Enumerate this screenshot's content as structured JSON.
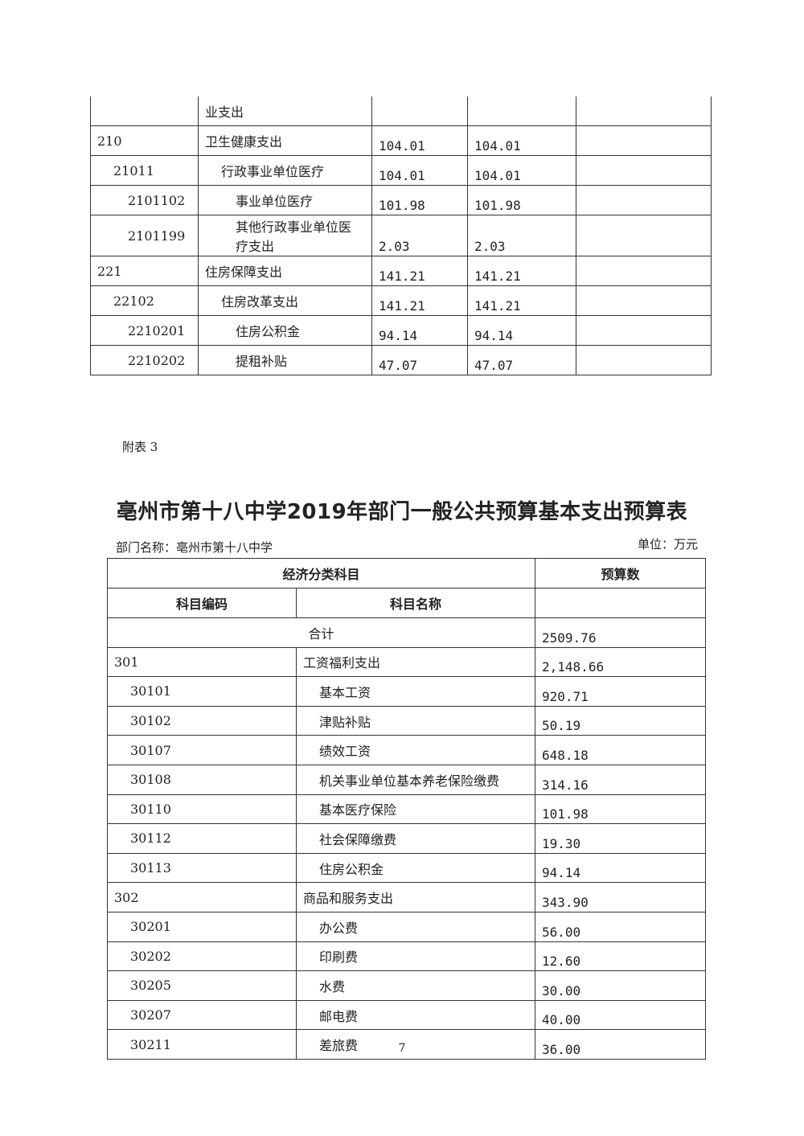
{
  "top_table": {
    "rows": [
      {
        "code": "",
        "name": "业支出",
        "level": 0,
        "v1": "",
        "v2": "",
        "v3": ""
      },
      {
        "code": "210",
        "name": "卫生健康支出",
        "level": 0,
        "v1": "104.01",
        "v2": "104.01",
        "v3": ""
      },
      {
        "code": "21011",
        "name": "行政事业单位医疗",
        "level": 1,
        "v1": "104.01",
        "v2": "104.01",
        "v3": ""
      },
      {
        "code": "2101102",
        "name": "事业单位医疗",
        "level": 2,
        "v1": "101.98",
        "v2": "101.98",
        "v3": ""
      },
      {
        "code": "2101199",
        "name": "其他行政事业单位医疗支出",
        "level": 2,
        "v1": "2.03",
        "v2": "2.03",
        "v3": ""
      },
      {
        "code": "221",
        "name": "住房保障支出",
        "level": 0,
        "v1": "141.21",
        "v2": "141.21",
        "v3": ""
      },
      {
        "code": "22102",
        "name": "住房改革支出",
        "level": 1,
        "v1": "141.21",
        "v2": "141.21",
        "v3": ""
      },
      {
        "code": "2210201",
        "name": "住房公积金",
        "level": 2,
        "v1": "94.14",
        "v2": "94.14",
        "v3": ""
      },
      {
        "code": "2210202",
        "name": "提租补贴",
        "level": 2,
        "v1": "47.07",
        "v2": "47.07",
        "v3": ""
      }
    ]
  },
  "appendix_label": "附表 3",
  "title": "亳州市第十八中学2019年部门一般公共预算基本支出预算表",
  "dept_name": "部门名称：亳州市第十八中学",
  "unit": "单位：万元",
  "budget_table": {
    "header_group": "经济分类科目",
    "header_amount": "预算数",
    "header_code": "科目编码",
    "header_name": "科目名称",
    "total_label": "合计",
    "total_value": "2509.76",
    "rows": [
      {
        "code": "301",
        "name": "工资福利支出",
        "level": 0,
        "value": "2,148.66"
      },
      {
        "code": "30101",
        "name": "基本工资",
        "level": 1,
        "value": "920.71"
      },
      {
        "code": "30102",
        "name": "津贴补贴",
        "level": 1,
        "value": "50.19"
      },
      {
        "code": "30107",
        "name": "绩效工资",
        "level": 1,
        "value": "648.18"
      },
      {
        "code": "30108",
        "name": "机关事业单位基本养老保险缴费",
        "level": 1,
        "value": "314.16"
      },
      {
        "code": "30110",
        "name": "基本医疗保险",
        "level": 1,
        "value": "101.98"
      },
      {
        "code": "30112",
        "name": "社会保障缴费",
        "level": 1,
        "value": "19.30"
      },
      {
        "code": "30113",
        "name": "住房公积金",
        "level": 1,
        "value": "94.14"
      },
      {
        "code": "302",
        "name": "商品和服务支出",
        "level": 0,
        "value": "343.90"
      },
      {
        "code": "30201",
        "name": "办公费",
        "level": 1,
        "value": "56.00"
      },
      {
        "code": "30202",
        "name": "印刷费",
        "level": 1,
        "value": "12.60"
      },
      {
        "code": "30205",
        "name": "水费",
        "level": 1,
        "value": "30.00"
      },
      {
        "code": "30207",
        "name": "邮电费",
        "level": 1,
        "value": "40.00"
      },
      {
        "code": "30211",
        "name": "差旅费",
        "level": 1,
        "value": "36.00"
      }
    ]
  },
  "page_number": "7"
}
